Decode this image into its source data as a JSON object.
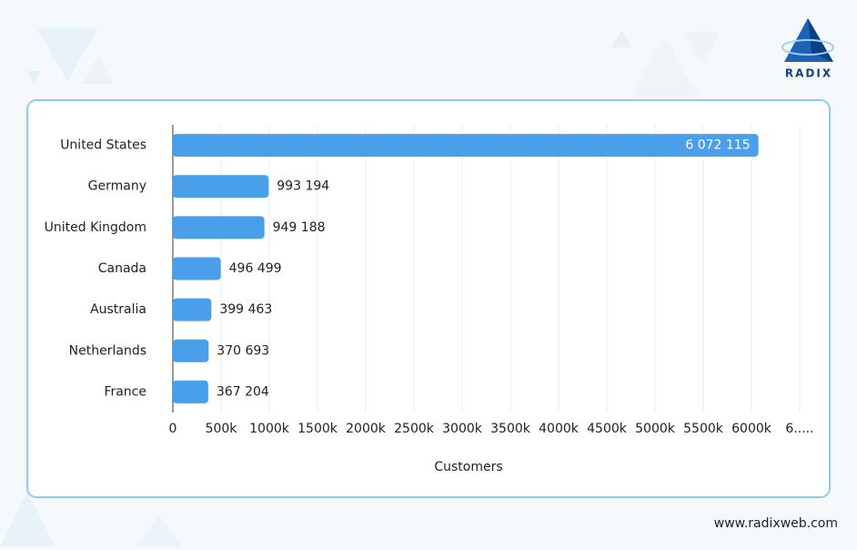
{
  "brand": "RADIX",
  "website": "www.radixweb.com",
  "chart_data": {
    "type": "bar",
    "orientation": "horizontal",
    "categories": [
      "United States",
      "Germany",
      "United Kingdom",
      "Canada",
      "Australia",
      "Netherlands",
      "France"
    ],
    "values": [
      6072115,
      993194,
      949188,
      496499,
      399463,
      370693,
      367204
    ],
    "value_labels": [
      "6 072 115",
      "993 194",
      "949 188",
      "496 499",
      "399 463",
      "370 693",
      "367 204"
    ],
    "color": "#4a9fea",
    "xlabel": "Customers",
    "xlim": [
      0,
      6500000
    ],
    "xticks": [
      0,
      {
        "value": 500000,
        "label": "500k"
      },
      {
        "value": 1000000,
        "label": "1000k"
      },
      {
        "value": 1500000,
        "label": "1500k"
      },
      {
        "value": 2000000,
        "label": "2000k"
      },
      {
        "value": 2500000,
        "label": "2500k"
      },
      {
        "value": 3000000,
        "label": "3000k"
      },
      {
        "value": 3500000,
        "label": "3500k"
      },
      {
        "value": 4000000,
        "label": "4000k"
      },
      {
        "value": 4500000,
        "label": "4500k"
      },
      {
        "value": 5000000,
        "label": "5000k"
      },
      {
        "value": 5500000,
        "label": "5500k"
      },
      {
        "value": 6000000,
        "label": "6000k"
      },
      {
        "value": 6500000,
        "label": "6....."
      }
    ],
    "grid": true
  }
}
